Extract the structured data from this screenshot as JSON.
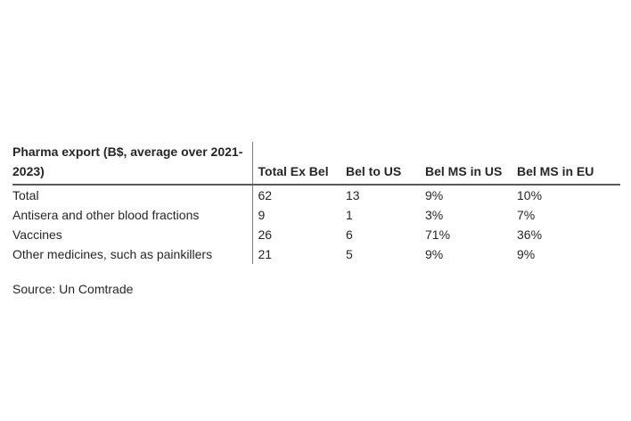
{
  "table": {
    "title": "Pharma export (B$, average over 2021-2023)",
    "columns": [
      "Total Ex Bel",
      "Bel to US",
      "Bel MS in US",
      "Bel MS in EU"
    ],
    "rows": [
      {
        "label": "Total",
        "cells": [
          "62",
          "13",
          "9%",
          "10%"
        ]
      },
      {
        "label": "Antisera and other blood fractions",
        "cells": [
          "9",
          "1",
          "3%",
          "7%"
        ]
      },
      {
        "label": "Vaccines",
        "cells": [
          "26",
          "6",
          "71%",
          "36%"
        ]
      },
      {
        "label": "Other medicines, such as painkillers",
        "cells": [
          "21",
          "5",
          "9%",
          "9%"
        ]
      }
    ]
  },
  "source": "Source: Un Comtrade",
  "colors": {
    "background": "#ffffff",
    "text": "#262626",
    "header_rule": "#595959",
    "column_divider": "#7f7f7f"
  }
}
